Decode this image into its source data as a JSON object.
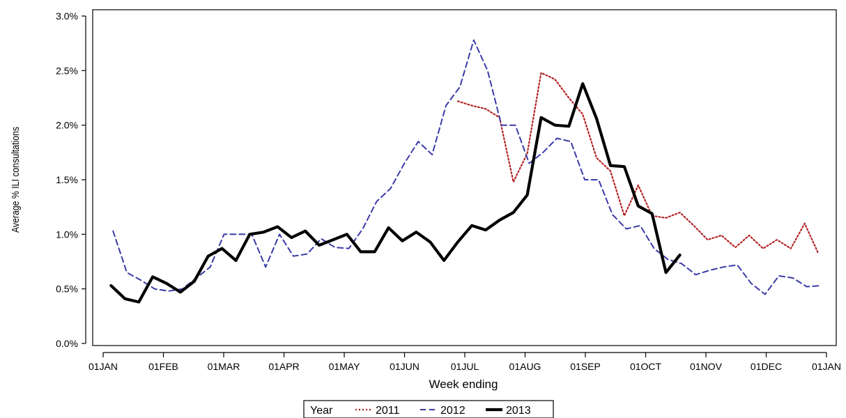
{
  "chart_data": {
    "type": "line",
    "xlabel": "Week ending",
    "ylabel": "Average % ILI consultations",
    "x_ticks": [
      "01JAN",
      "01FEB",
      "01MAR",
      "01APR",
      "01MAY",
      "01JUN",
      "01JUL",
      "01AUG",
      "01SEP",
      "01OCT",
      "01NOV",
      "01DEC",
      "01JAN"
    ],
    "y_ticks": [
      "0.0%",
      "0.5%",
      "1.0%",
      "1.5%",
      "2.0%",
      "2.5%",
      "3.0%"
    ],
    "ylim": [
      0,
      3.0
    ],
    "x_unit": "day of year",
    "xlim": [
      1,
      366
    ],
    "grid": false,
    "legend": {
      "title": "Year",
      "position": "bottom-center"
    },
    "series": [
      {
        "name": "2011",
        "style": "dotted",
        "color": "#b22222",
        "x": [
          180,
          187,
          194,
          201,
          208,
          215,
          222,
          229,
          236,
          243,
          250,
          257,
          264,
          271,
          278,
          285,
          292,
          299,
          306,
          313,
          320,
          327,
          334,
          341,
          348,
          355,
          362
        ],
        "y": [
          2.22,
          2.18,
          2.15,
          2.07,
          1.48,
          1.74,
          2.48,
          2.42,
          2.25,
          2.1,
          1.7,
          1.58,
          1.17,
          1.45,
          1.17,
          1.15,
          1.2,
          1.08,
          0.95,
          0.99,
          0.88,
          0.99,
          0.87,
          0.95,
          0.87,
          1.1,
          0.82
        ]
      },
      {
        "name": "2012",
        "style": "dashed",
        "color": "#3a3aa8",
        "x": [
          6,
          13,
          20,
          27,
          34,
          41,
          48,
          55,
          62,
          69,
          76,
          83,
          90,
          97,
          104,
          111,
          118,
          125,
          132,
          139,
          146,
          153,
          160,
          167,
          174,
          181,
          188,
          195,
          202,
          209,
          216,
          223,
          230,
          237,
          244,
          251,
          258,
          265,
          272,
          279,
          286,
          293,
          300,
          307,
          314,
          321,
          328,
          335,
          342,
          349,
          356,
          363
        ],
        "y": [
          1.03,
          0.65,
          0.58,
          0.5,
          0.48,
          0.5,
          0.6,
          0.7,
          1.0,
          1.0,
          1.0,
          0.7,
          1.0,
          0.8,
          0.82,
          0.96,
          0.88,
          0.87,
          1.05,
          1.3,
          1.42,
          1.65,
          1.85,
          1.73,
          2.18,
          2.35,
          2.78,
          2.5,
          2.0,
          2.0,
          1.65,
          1.75,
          1.88,
          1.85,
          1.5,
          1.5,
          1.18,
          1.05,
          1.08,
          0.87,
          0.77,
          0.73,
          0.63,
          0.67,
          0.7,
          0.72,
          0.55,
          0.45,
          0.62,
          0.6,
          0.52,
          0.53
        ]
      },
      {
        "name": "2013",
        "style": "solid",
        "color": "#000000",
        "x": [
          5,
          12,
          19,
          26,
          33,
          40,
          47,
          54,
          61,
          68,
          75,
          82,
          89,
          96,
          103,
          110,
          117,
          124,
          131,
          138,
          145,
          152,
          159,
          166,
          173,
          180,
          187,
          194,
          201,
          208,
          215,
          222,
          229,
          236,
          243,
          250,
          257,
          264,
          271,
          278,
          285,
          292
        ],
        "y": [
          0.53,
          0.41,
          0.38,
          0.61,
          0.55,
          0.47,
          0.57,
          0.8,
          0.87,
          0.76,
          1.0,
          1.02,
          1.07,
          0.97,
          1.03,
          0.9,
          0.95,
          1.0,
          0.84,
          0.84,
          1.06,
          0.94,
          1.02,
          0.93,
          0.76,
          0.93,
          1.08,
          1.04,
          1.13,
          1.2,
          1.36,
          2.07,
          2.0,
          1.99,
          2.38,
          2.06,
          1.63,
          1.62,
          1.26,
          1.19,
          0.65,
          0.81
        ]
      }
    ]
  }
}
